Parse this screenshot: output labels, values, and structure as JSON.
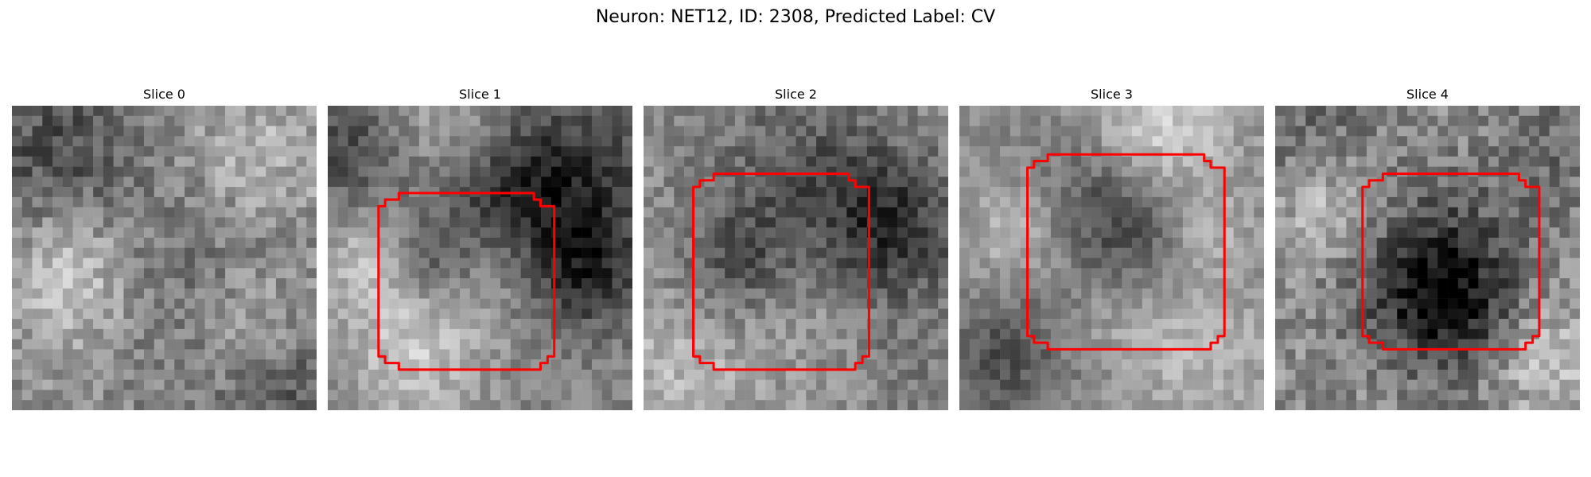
{
  "figure": {
    "title": "Neuron: NET12, ID: 2308, Predicted Label: CV",
    "panels": [
      {
        "title": "Slice 0",
        "has_contour": false
      },
      {
        "title": "Slice 1",
        "has_contour": true
      },
      {
        "title": "Slice 2",
        "has_contour": true
      },
      {
        "title": "Slice 3",
        "has_contour": true
      },
      {
        "title": "Slice 4",
        "has_contour": true
      }
    ]
  },
  "colors": {
    "contour": "#ff0000",
    "background": "#ffffff"
  }
}
